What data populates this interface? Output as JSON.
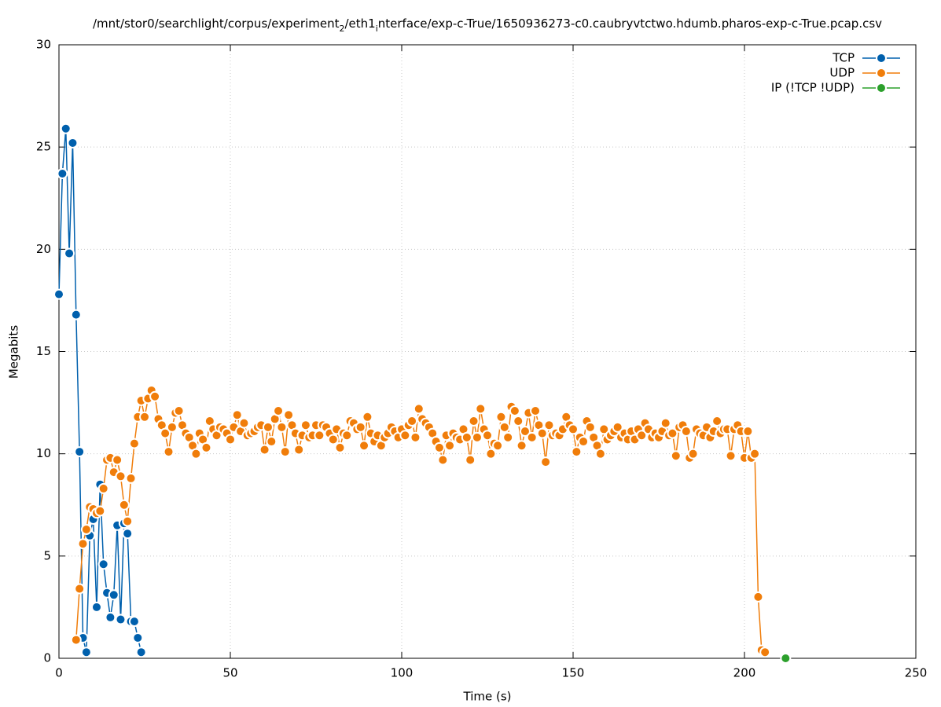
{
  "chart_data": {
    "type": "line",
    "title_parts": [
      {
        "text": "/mnt/stor0/searchlight/corpus/experiment",
        "sub": false
      },
      {
        "text": "2",
        "sub": true
      },
      {
        "text": "/eth1",
        "sub": false
      },
      {
        "text": "i",
        "sub": true
      },
      {
        "text": "nterface/exp-c-True/1650936273-c0.caubryvtctwo.hdumb.pharos-exp-c-True.pcap.csv",
        "sub": false
      }
    ],
    "x_label": "Time (s)",
    "y_label": "Megabits",
    "xlim": [
      0,
      250
    ],
    "xticks": [
      0,
      50,
      100,
      150,
      200,
      250
    ],
    "ylim": [
      0,
      30
    ],
    "yticks": [
      0,
      5,
      10,
      15,
      20,
      25,
      30
    ],
    "grid": true,
    "legend": "top-right",
    "series": [
      {
        "name": "TCP",
        "color": "#0060ad",
        "x": [
          0,
          1,
          2,
          3,
          4,
          5,
          6,
          7,
          8,
          9,
          10,
          11,
          12,
          13,
          14,
          15,
          16,
          17,
          18,
          19,
          20,
          21,
          22,
          23,
          24
        ],
        "values": [
          17.8,
          23.7,
          25.9,
          19.8,
          25.2,
          16.8,
          10.1,
          1.0,
          0.3,
          6.0,
          6.8,
          2.5,
          8.5,
          4.6,
          3.2,
          2.0,
          3.1,
          6.5,
          1.9,
          6.6,
          6.1,
          1.8,
          1.8,
          1.0,
          0.3
        ]
      },
      {
        "name": "UDP",
        "color": "#f07d0a",
        "x": [
          5,
          6,
          7,
          8,
          9,
          10,
          11,
          12,
          13,
          14,
          15,
          16,
          17,
          18,
          19,
          20,
          21,
          22,
          23,
          24,
          25,
          26,
          27,
          28,
          29,
          30,
          31,
          32,
          33,
          34,
          35,
          36,
          37,
          38,
          39,
          40,
          41,
          42,
          43,
          44,
          45,
          46,
          47,
          48,
          49,
          50,
          51,
          52,
          53,
          54,
          55,
          56,
          57,
          58,
          59,
          60,
          61,
          62,
          63,
          64,
          65,
          66,
          67,
          68,
          69,
          70,
          71,
          72,
          73,
          74,
          75,
          76,
          77,
          78,
          79,
          80,
          81,
          82,
          83,
          84,
          85,
          86,
          87,
          88,
          89,
          90,
          91,
          92,
          93,
          94,
          95,
          96,
          97,
          98,
          99,
          100,
          101,
          102,
          103,
          104,
          105,
          106,
          107,
          108,
          109,
          110,
          111,
          112,
          113,
          114,
          115,
          116,
          117,
          118,
          119,
          120,
          121,
          122,
          123,
          124,
          125,
          126,
          127,
          128,
          129,
          130,
          131,
          132,
          133,
          134,
          135,
          136,
          137,
          138,
          139,
          140,
          141,
          142,
          143,
          144,
          145,
          146,
          147,
          148,
          149,
          150,
          151,
          152,
          153,
          154,
          155,
          156,
          157,
          158,
          159,
          160,
          161,
          162,
          163,
          164,
          165,
          166,
          167,
          168,
          169,
          170,
          171,
          172,
          173,
          174,
          175,
          176,
          177,
          178,
          179,
          180,
          181,
          182,
          183,
          184,
          185,
          186,
          187,
          188,
          189,
          190,
          191,
          192,
          193,
          194,
          195,
          196,
          197,
          198,
          199,
          200,
          201,
          202,
          203,
          204,
          205,
          206
        ],
        "values": [
          0.9,
          3.4,
          5.6,
          6.3,
          7.4,
          7.3,
          7.1,
          7.2,
          8.3,
          9.7,
          9.8,
          9.1,
          9.7,
          8.9,
          7.5,
          6.7,
          8.8,
          10.5,
          11.8,
          12.6,
          11.8,
          12.7,
          13.1,
          12.8,
          11.7,
          11.4,
          11.0,
          10.1,
          11.3,
          12.0,
          12.1,
          11.4,
          11.0,
          10.8,
          10.4,
          10.0,
          11.0,
          10.7,
          10.3,
          11.6,
          11.2,
          10.9,
          11.3,
          11.2,
          11.0,
          10.7,
          11.3,
          11.9,
          11.1,
          11.5,
          10.9,
          11.0,
          11.1,
          11.3,
          11.4,
          10.2,
          11.3,
          10.6,
          11.7,
          12.1,
          11.3,
          10.1,
          11.9,
          11.4,
          11.0,
          10.2,
          10.9,
          11.4,
          10.8,
          10.9,
          11.4,
          10.9,
          11.4,
          11.3,
          11.0,
          10.7,
          11.2,
          10.3,
          11.0,
          10.9,
          11.6,
          11.5,
          11.2,
          11.3,
          10.4,
          11.8,
          11.0,
          10.6,
          10.9,
          10.4,
          10.8,
          11.0,
          11.3,
          11.1,
          10.8,
          11.2,
          10.9,
          11.4,
          11.6,
          10.8,
          12.2,
          11.7,
          11.5,
          11.3,
          11.0,
          10.6,
          10.3,
          9.7,
          10.9,
          10.4,
          11.0,
          10.8,
          10.7,
          11.2,
          10.8,
          9.7,
          11.6,
          10.8,
          12.2,
          11.2,
          10.9,
          10.0,
          10.5,
          10.4,
          11.8,
          11.3,
          10.8,
          12.3,
          12.1,
          11.6,
          10.4,
          11.1,
          12.0,
          10.8,
          12.1,
          11.4,
          11.0,
          9.6,
          11.4,
          10.9,
          11.0,
          10.9,
          11.2,
          11.8,
          11.4,
          11.2,
          10.1,
          10.8,
          10.6,
          11.6,
          11.3,
          10.8,
          10.4,
          10.0,
          11.2,
          10.7,
          10.9,
          11.1,
          11.3,
          10.8,
          11.0,
          10.7,
          11.1,
          10.7,
          11.2,
          10.9,
          11.5,
          11.2,
          10.8,
          11.0,
          10.8,
          11.1,
          11.5,
          10.9,
          11.0,
          9.9,
          11.3,
          11.4,
          11.1,
          9.8,
          10.0,
          11.2,
          11.0,
          10.9,
          11.3,
          10.8,
          11.1,
          11.6,
          11.0,
          11.2,
          11.2,
          9.9,
          11.2,
          11.4,
          11.1,
          9.8,
          11.1,
          9.8,
          10.0,
          3.0,
          0.4,
          0.3
        ]
      },
      {
        "name": "IP (!TCP  !UDP)",
        "color": "#2ca02c",
        "x": [
          212
        ],
        "values": [
          0
        ]
      }
    ]
  }
}
